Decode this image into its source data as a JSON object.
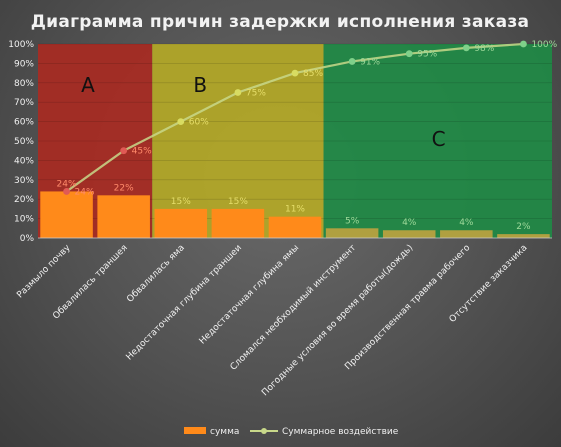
{
  "chart_data": {
    "type": "bar",
    "title": "Диаграмма причин задержки исполнения заказа",
    "categories": [
      "Размыло почву",
      "Обвалилась траншея",
      "Обвалилась яма",
      "Недостаточная глубина траншеи",
      "Недостаточная глубина ямы",
      "Сломался необходимый инструмент",
      "Погодные условия во время работы(дождь)",
      "Производственная травма рабочего",
      "Отсутствие заказчика"
    ],
    "series": [
      {
        "name": "сумма",
        "type": "bar",
        "values": [
          24,
          22,
          15,
          15,
          11,
          5,
          4,
          4,
          2
        ],
        "labels": [
          "24%",
          "22%",
          "15%",
          "15%",
          "11%",
          "5%",
          "4%",
          "4%",
          "2%"
        ]
      },
      {
        "name": "Суммарное воздействие",
        "type": "line",
        "values": [
          24,
          45,
          60,
          75,
          85,
          91,
          95,
          98,
          100
        ],
        "labels": [
          "24%",
          "45%",
          "60%",
          "75%",
          "85%",
          "91%",
          "95%",
          "98%",
          "100%"
        ]
      }
    ],
    "y_ticks": [
      "0%",
      "10%",
      "20%",
      "30%",
      "40%",
      "50%",
      "60%",
      "70%",
      "80%",
      "90%",
      "100%"
    ],
    "ylim": [
      0,
      100
    ],
    "zones": [
      {
        "label": "A",
        "from": 0,
        "to": 2,
        "color": "#a82a22"
      },
      {
        "label": "B",
        "from": 2,
        "to": 5,
        "color": "#b3a826"
      },
      {
        "label": "C",
        "from": 5,
        "to": 9,
        "color": "#1f8a45"
      }
    ],
    "legend_position": "bottom",
    "colors": {
      "bar_main": "#ff8a1a",
      "bar_muted": "#b0a040",
      "line": "#c8d88a",
      "title": "#f2f2f2"
    }
  }
}
